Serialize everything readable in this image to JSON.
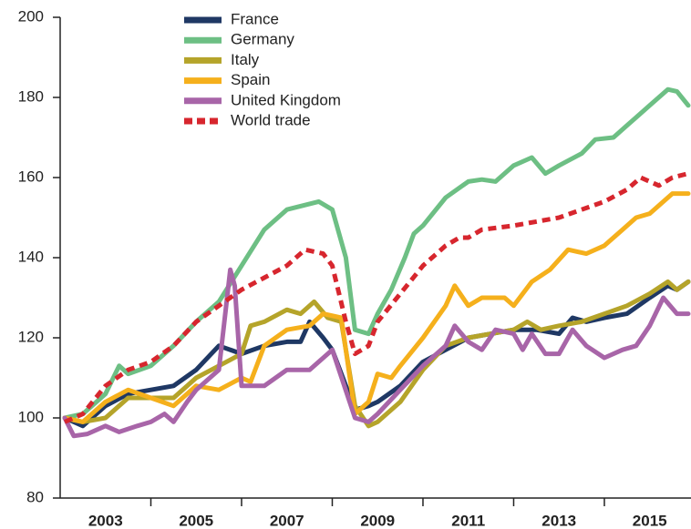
{
  "chart_data": {
    "type": "line",
    "xlim": [
      2002,
      2015.85
    ],
    "xticks": [
      2003,
      2005,
      2007,
      2009,
      2011,
      2013,
      2015
    ],
    "ylim": [
      80,
      200
    ],
    "yticks": [
      80,
      100,
      120,
      140,
      160,
      180,
      200
    ],
    "legend": "top-center",
    "series": [
      {
        "name": "France",
        "color": "#1f3864",
        "dash": false,
        "x": [
          2002.1,
          2002.5,
          2003,
          2003.5,
          2004,
          2004.5,
          2005,
          2005.5,
          2006,
          2006.5,
          2007,
          2007.3,
          2007.5,
          2007.8,
          2008,
          2008.5,
          2008.8,
          2009,
          2009.5,
          2010,
          2010.5,
          2011,
          2011.5,
          2012,
          2012.5,
          2013,
          2013.3,
          2013.6,
          2014,
          2014.5,
          2015,
          2015.4,
          2015.6,
          2015.85
        ],
        "values": [
          100,
          98,
          103,
          106,
          107,
          108,
          112,
          118,
          116,
          118,
          119,
          119,
          124,
          120,
          117,
          102,
          103,
          104,
          108,
          114,
          117,
          120,
          121,
          122,
          122,
          121,
          125,
          124,
          125,
          126,
          130,
          133,
          132,
          134
        ]
      },
      {
        "name": "Germany",
        "color": "#6dbf84",
        "dash": false,
        "x": [
          2002.1,
          2002.5,
          2003,
          2003.3,
          2003.5,
          2004,
          2004.5,
          2005,
          2005.5,
          2006,
          2006.5,
          2007,
          2007.7,
          2008,
          2008.3,
          2008.5,
          2008.8,
          2009,
          2009.3,
          2009.6,
          2009.8,
          2010,
          2010.5,
          2011,
          2011.3,
          2011.6,
          2012,
          2012.4,
          2012.7,
          2013,
          2013.5,
          2013.8,
          2014.2,
          2014.5,
          2015,
          2015.4,
          2015.6,
          2015.85
        ],
        "values": [
          100,
          101,
          106,
          113,
          111,
          113,
          118,
          124,
          129,
          138,
          147,
          152,
          154,
          152,
          140,
          122,
          121,
          126,
          132,
          140,
          146,
          148,
          155,
          159,
          159.5,
          159,
          163,
          165,
          161,
          163,
          166,
          169.5,
          170,
          173,
          178,
          182,
          181.5,
          178
        ]
      },
      {
        "name": "Italy",
        "color": "#b5a42a",
        "dash": false,
        "x": [
          2002.1,
          2002.5,
          2003,
          2003.5,
          2004,
          2004.5,
          2005,
          2005.5,
          2006,
          2006.2,
          2006.5,
          2007,
          2007.3,
          2007.6,
          2007.9,
          2008.2,
          2008.5,
          2008.8,
          2009,
          2009.5,
          2010,
          2010.5,
          2011,
          2011.5,
          2012,
          2012.3,
          2012.6,
          2013,
          2013.5,
          2014,
          2014.5,
          2015,
          2015.4,
          2015.6,
          2015.85
        ],
        "values": [
          100,
          99,
          100,
          105,
          105,
          105,
          110,
          113,
          116,
          123,
          124,
          127,
          126,
          129,
          125,
          124,
          103,
          98,
          99,
          104,
          112,
          118,
          120,
          121,
          122,
          124,
          122,
          123,
          124,
          126,
          128,
          131,
          134,
          132,
          134
        ]
      },
      {
        "name": "Spain",
        "color": "#f5b01c",
        "dash": false,
        "x": [
          2002.1,
          2002.5,
          2003,
          2003.5,
          2004,
          2004.5,
          2005,
          2005.5,
          2006,
          2006.2,
          2006.5,
          2007,
          2007.5,
          2007.8,
          2008.2,
          2008.5,
          2008.8,
          2009,
          2009.3,
          2009.5,
          2010,
          2010.5,
          2010.7,
          2011,
          2011.3,
          2011.8,
          2012,
          2012.4,
          2012.8,
          2013.2,
          2013.6,
          2014,
          2014.4,
          2014.7,
          2015,
          2015.5,
          2015.85
        ],
        "values": [
          100,
          99,
          104,
          107,
          105,
          103,
          108,
          107,
          110,
          109,
          118,
          122,
          123,
          126,
          125,
          101,
          104,
          111,
          110,
          113,
          120,
          128,
          133,
          128,
          130,
          130,
          128,
          134,
          137,
          142,
          141,
          143,
          147,
          150,
          151,
          156,
          156
        ]
      },
      {
        "name": "United Kingdom",
        "color": "#a865a8",
        "dash": false,
        "x": [
          2002.1,
          2002.3,
          2002.6,
          2003,
          2003.3,
          2003.7,
          2004,
          2004.3,
          2004.5,
          2004.8,
          2005,
          2005.3,
          2005.5,
          2005.75,
          2005.85,
          2006,
          2006.5,
          2007,
          2007.5,
          2008,
          2008.5,
          2008.8,
          2009,
          2009.5,
          2010,
          2010.5,
          2010.7,
          2011,
          2011.3,
          2011.6,
          2012,
          2012.2,
          2012.4,
          2012.7,
          2013,
          2013.3,
          2013.6,
          2014,
          2014.4,
          2014.7,
          2015,
          2015.3,
          2015.6,
          2015.85
        ],
        "values": [
          100,
          95.5,
          96,
          98,
          96.5,
          98,
          99,
          101,
          99,
          104,
          107,
          110,
          112,
          137,
          133,
          108,
          108,
          112,
          112,
          117,
          100,
          99,
          101,
          107,
          113,
          118,
          123,
          119,
          117,
          122,
          121,
          117,
          121,
          116,
          116,
          122,
          118,
          115,
          117,
          118,
          123,
          130,
          126,
          126
        ]
      },
      {
        "name": "World trade",
        "color": "#d7262e",
        "dash": true,
        "x": [
          2002.1,
          2002.5,
          2003,
          2003.5,
          2004,
          2004.5,
          2005,
          2005.5,
          2006,
          2006.5,
          2007,
          2007.4,
          2007.8,
          2008,
          2008.3,
          2008.5,
          2008.8,
          2009,
          2009.5,
          2010,
          2010.5,
          2010.8,
          2011,
          2011.3,
          2012,
          2012.5,
          2013,
          2013.5,
          2014,
          2014.5,
          2014.8,
          2015.2,
          2015.5,
          2015.85
        ],
        "values": [
          99,
          101,
          108,
          112,
          114,
          118,
          124,
          128,
          132,
          135,
          138,
          142,
          141,
          138,
          124,
          116,
          118,
          124,
          131,
          138,
          143,
          145,
          145,
          147,
          148,
          149,
          150,
          152,
          154,
          157,
          160,
          158,
          160,
          161
        ]
      }
    ]
  }
}
